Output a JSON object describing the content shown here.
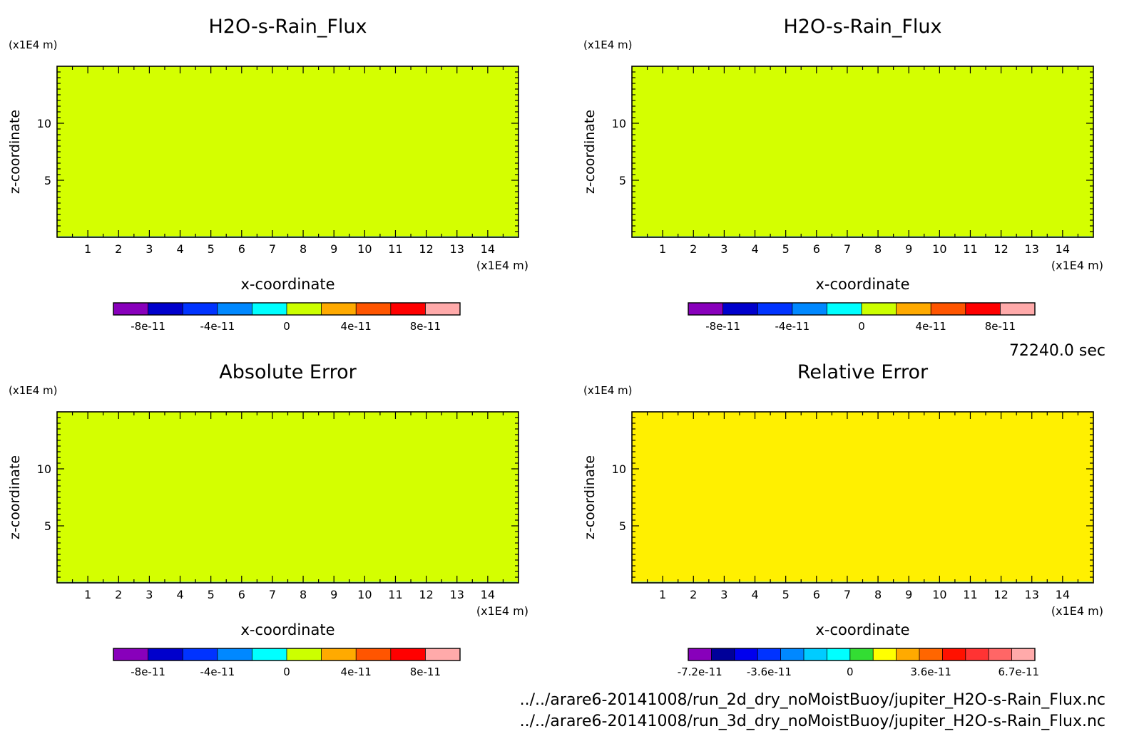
{
  "time_label": "72240.0 sec",
  "files": [
    "../../arare6-20141008/run_2d_dry_noMoistBuoy/jupiter_H2O-s-Rain_Flux.nc",
    "../../arare6-20141008/run_3d_dry_noMoistBuoy/jupiter_H2O-s-Rain_Flux.nc"
  ],
  "chart_data": [
    {
      "type": "heatmap",
      "title": "H2O-s-Rain_Flux",
      "xlabel": "x-coordinate",
      "ylabel": "z-coordinate",
      "x_unit": "(x1E4 m)",
      "y_unit": "(x1E4 m)",
      "xlim": [
        0,
        15
      ],
      "ylim": [
        0,
        15
      ],
      "x_ticks": [
        "1",
        "2",
        "3",
        "4",
        "5",
        "6",
        "7",
        "8",
        "9",
        "10",
        "11",
        "12",
        "13",
        "14"
      ],
      "y_ticks": [
        "5",
        "10"
      ],
      "field_color": "#d4ff00",
      "colorbar": {
        "colors": [
          "#8800bb",
          "#0000cc",
          "#0033ff",
          "#0088ff",
          "#00ffff",
          "#ccff00",
          "#ffaa00",
          "#ff5500",
          "#ff0000",
          "#ffaaaa"
        ],
        "labels": [
          "-8e-11",
          "-4e-11",
          "0",
          "4e-11",
          "8e-11"
        ]
      }
    },
    {
      "type": "heatmap",
      "title": "H2O-s-Rain_Flux",
      "xlabel": "x-coordinate",
      "ylabel": "z-coordinate",
      "x_unit": "(x1E4 m)",
      "y_unit": "(x1E4 m)",
      "xlim": [
        0,
        15
      ],
      "ylim": [
        0,
        15
      ],
      "x_ticks": [
        "1",
        "2",
        "3",
        "4",
        "5",
        "6",
        "7",
        "8",
        "9",
        "10",
        "11",
        "12",
        "13",
        "14"
      ],
      "y_ticks": [
        "5",
        "10"
      ],
      "field_color": "#d4ff00",
      "colorbar": {
        "colors": [
          "#8800bb",
          "#0000cc",
          "#0033ff",
          "#0088ff",
          "#00ffff",
          "#ccff00",
          "#ffaa00",
          "#ff5500",
          "#ff0000",
          "#ffaaaa"
        ],
        "labels": [
          "-8e-11",
          "-4e-11",
          "0",
          "4e-11",
          "8e-11"
        ]
      }
    },
    {
      "type": "heatmap",
      "title": "Absolute Error",
      "xlabel": "x-coordinate",
      "ylabel": "z-coordinate",
      "x_unit": "(x1E4 m)",
      "y_unit": "(x1E4 m)",
      "xlim": [
        0,
        15
      ],
      "ylim": [
        0,
        15
      ],
      "x_ticks": [
        "1",
        "2",
        "3",
        "4",
        "5",
        "6",
        "7",
        "8",
        "9",
        "10",
        "11",
        "12",
        "13",
        "14"
      ],
      "y_ticks": [
        "5",
        "10"
      ],
      "field_color": "#d4ff00",
      "colorbar": {
        "colors": [
          "#8800bb",
          "#0000cc",
          "#0033ff",
          "#0088ff",
          "#00ffff",
          "#ccff00",
          "#ffaa00",
          "#ff5500",
          "#ff0000",
          "#ffaaaa"
        ],
        "labels": [
          "-8e-11",
          "-4e-11",
          "0",
          "4e-11",
          "8e-11"
        ]
      }
    },
    {
      "type": "heatmap",
      "title": "Relative Error",
      "xlabel": "x-coordinate",
      "ylabel": "z-coordinate",
      "x_unit": "(x1E4 m)",
      "y_unit": "(x1E4 m)",
      "xlim": [
        0,
        15
      ],
      "ylim": [
        0,
        15
      ],
      "x_ticks": [
        "1",
        "2",
        "3",
        "4",
        "5",
        "6",
        "7",
        "8",
        "9",
        "10",
        "11",
        "12",
        "13",
        "14"
      ],
      "y_ticks": [
        "5",
        "10"
      ],
      "field_color": "#fff000",
      "colorbar": {
        "colors": [
          "#8800bb",
          "#000099",
          "#0000ee",
          "#0033ff",
          "#0088ff",
          "#00ccff",
          "#00ffff",
          "#33dd33",
          "#ffff00",
          "#ffaa00",
          "#ff6600",
          "#ff1100",
          "#ff3333",
          "#ff6666",
          "#ffaaaa"
        ],
        "labels": [
          "-7.2e-11",
          "-3.6e-11",
          "0",
          "3.6e-11",
          "6.7e-11"
        ]
      }
    }
  ]
}
